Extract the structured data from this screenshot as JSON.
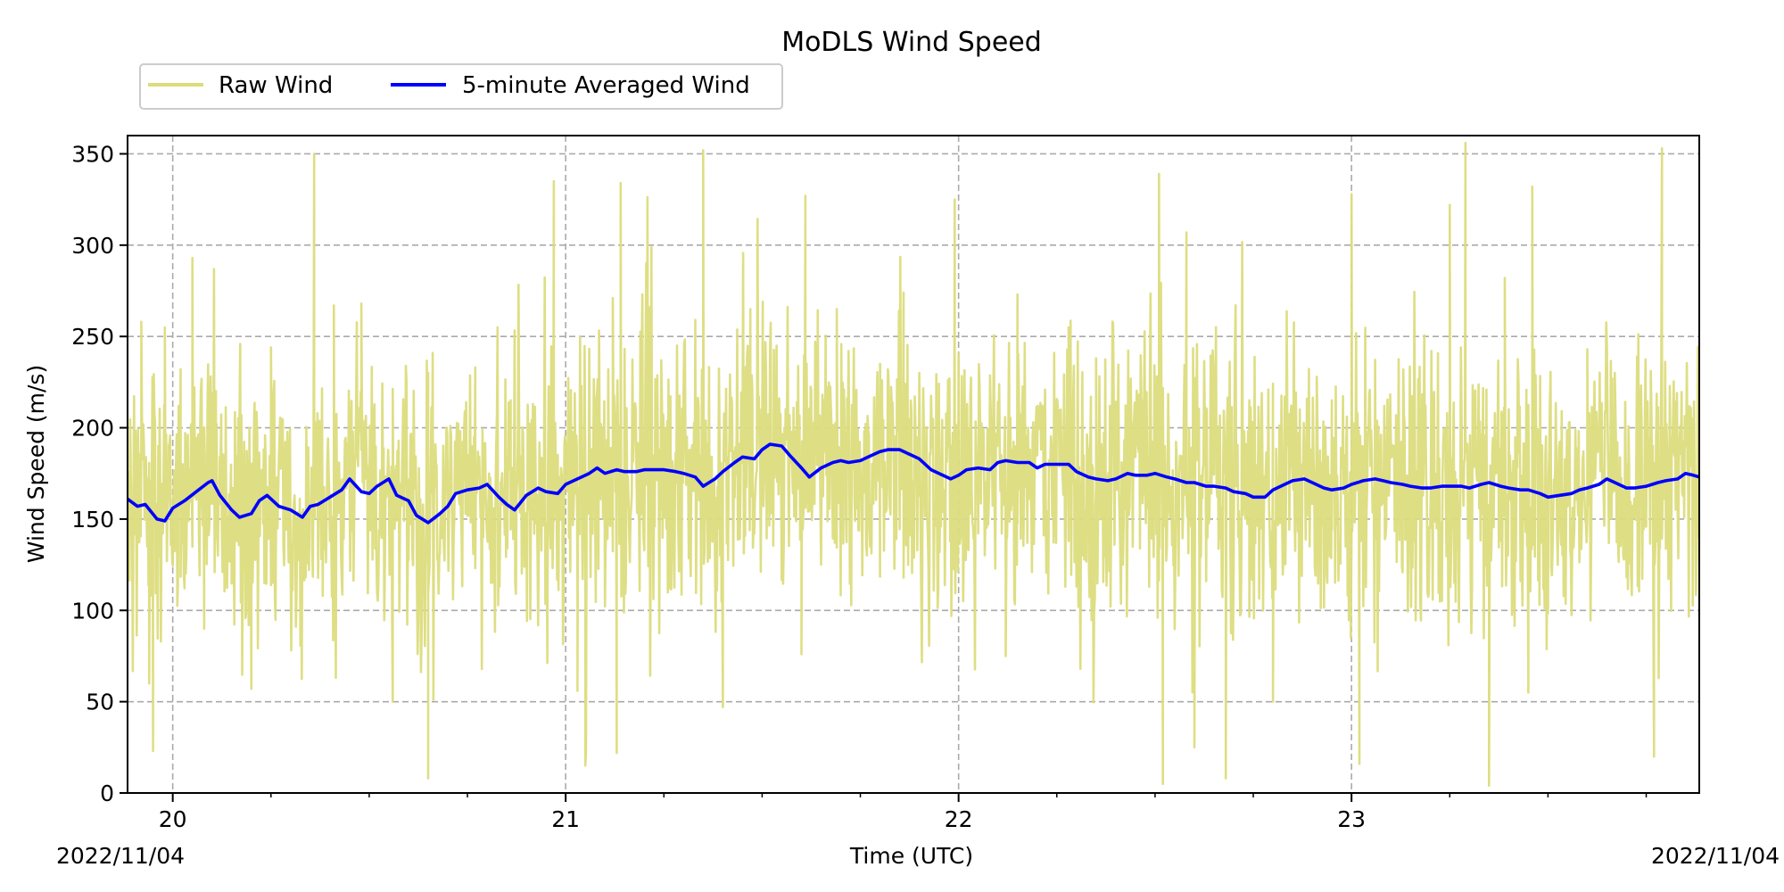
{
  "chart_data": {
    "type": "line",
    "title": "MoDLS Wind Speed",
    "xlabel": "Time (UTC)",
    "ylabel": "Wind Speed (m/s)",
    "x_unit": "hour of day (UTC), 2022/11/04",
    "xlim": [
      19.885,
      23.885
    ],
    "ylim": [
      0,
      360
    ],
    "x_major_ticks": [
      20,
      21,
      22,
      23
    ],
    "x_major_tick_labels": [
      "20",
      "21",
      "22",
      "23"
    ],
    "x_minor_tick_step": 0.25,
    "y_ticks": [
      0,
      50,
      100,
      150,
      200,
      250,
      300,
      350
    ],
    "y_tick_labels": [
      "0",
      "50",
      "100",
      "150",
      "200",
      "250",
      "300",
      "350"
    ],
    "date_labels": {
      "left": "2022/11/04",
      "right": "2022/11/04"
    },
    "grid": true,
    "legend": {
      "placement": "top-left, outside above plot",
      "columns": 2
    },
    "series": [
      {
        "name": "Raw Wind",
        "color": "#dcdc7d",
        "line_width": "thin",
        "note": "noisy minute-scale signal, mostly 100-220 m/s",
        "spikes": [
          [
            19.92,
            258
          ],
          [
            19.94,
            60
          ],
          [
            19.95,
            23
          ],
          [
            19.98,
            255
          ],
          [
            20.02,
            232
          ],
          [
            20.05,
            293
          ],
          [
            20.08,
            90
          ],
          [
            20.11,
            220
          ],
          [
            20.2,
            57
          ],
          [
            20.25,
            244
          ],
          [
            20.36,
            350
          ],
          [
            20.41,
            267
          ],
          [
            20.48,
            268
          ],
          [
            20.56,
            50
          ],
          [
            20.65,
            230
          ],
          [
            20.65,
            8
          ],
          [
            20.77,
            233
          ],
          [
            20.86,
            215
          ],
          [
            20.97,
            335
          ],
          [
            21.03,
            56
          ],
          [
            21.05,
            15
          ],
          [
            21.12,
            271
          ],
          [
            21.13,
            22
          ],
          [
            21.14,
            334
          ],
          [
            21.35,
            352
          ],
          [
            21.4,
            47
          ],
          [
            21.47,
            265
          ],
          [
            21.6,
            76
          ],
          [
            21.61,
            327
          ],
          [
            21.69,
            265
          ],
          [
            21.8,
            235
          ],
          [
            21.86,
            274
          ],
          [
            21.99,
            325
          ],
          [
            22.12,
            75
          ],
          [
            22.15,
            273
          ],
          [
            22.28,
            255
          ],
          [
            22.35,
            238
          ],
          [
            22.47,
            215
          ],
          [
            22.51,
            339
          ],
          [
            22.52,
            5
          ],
          [
            22.58,
            307
          ],
          [
            22.6,
            25
          ],
          [
            22.68,
            8
          ],
          [
            22.74,
            215
          ],
          [
            22.8,
            50
          ],
          [
            22.95,
            215
          ],
          [
            23.0,
            328
          ],
          [
            23.02,
            16
          ],
          [
            23.25,
            322
          ],
          [
            23.29,
            356
          ],
          [
            23.35,
            4
          ],
          [
            23.39,
            282
          ],
          [
            23.45,
            55
          ],
          [
            23.46,
            332
          ],
          [
            23.6,
            243
          ],
          [
            23.67,
            230
          ],
          [
            23.77,
            20
          ],
          [
            23.79,
            353
          ]
        ]
      },
      {
        "name": "5-minute Averaged Wind",
        "color": "#0000ff",
        "line_width": "thick",
        "points": [
          [
            19.885,
            161
          ],
          [
            19.91,
            157
          ],
          [
            19.93,
            158
          ],
          [
            19.96,
            150
          ],
          [
            19.98,
            149
          ],
          [
            20.0,
            156
          ],
          [
            20.03,
            160
          ],
          [
            20.06,
            165
          ],
          [
            20.09,
            170
          ],
          [
            20.1,
            171
          ],
          [
            20.12,
            163
          ],
          [
            20.15,
            155
          ],
          [
            20.17,
            151
          ],
          [
            20.2,
            153
          ],
          [
            20.22,
            160
          ],
          [
            20.24,
            163
          ],
          [
            20.27,
            157
          ],
          [
            20.3,
            155
          ],
          [
            20.33,
            151
          ],
          [
            20.35,
            157
          ],
          [
            20.37,
            158
          ],
          [
            20.4,
            162
          ],
          [
            20.43,
            166
          ],
          [
            20.45,
            172
          ],
          [
            20.48,
            165
          ],
          [
            20.5,
            164
          ],
          [
            20.52,
            168
          ],
          [
            20.55,
            172
          ],
          [
            20.57,
            163
          ],
          [
            20.6,
            160
          ],
          [
            20.62,
            152
          ],
          [
            20.65,
            148
          ],
          [
            20.68,
            153
          ],
          [
            20.7,
            157
          ],
          [
            20.72,
            164
          ],
          [
            20.75,
            166
          ],
          [
            20.78,
            167
          ],
          [
            20.8,
            169
          ],
          [
            20.83,
            162
          ],
          [
            20.85,
            158
          ],
          [
            20.87,
            155
          ],
          [
            20.9,
            163
          ],
          [
            20.93,
            167
          ],
          [
            20.95,
            165
          ],
          [
            20.98,
            164
          ],
          [
            21.0,
            169
          ],
          [
            21.03,
            172
          ],
          [
            21.06,
            175
          ],
          [
            21.08,
            178
          ],
          [
            21.1,
            175
          ],
          [
            21.13,
            177
          ],
          [
            21.15,
            176
          ],
          [
            21.18,
            176
          ],
          [
            21.2,
            177
          ],
          [
            21.23,
            177
          ],
          [
            21.25,
            177
          ],
          [
            21.28,
            176
          ],
          [
            21.3,
            175
          ],
          [
            21.33,
            173
          ],
          [
            21.35,
            168
          ],
          [
            21.38,
            172
          ],
          [
            21.4,
            176
          ],
          [
            21.43,
            181
          ],
          [
            21.45,
            184
          ],
          [
            21.48,
            183
          ],
          [
            21.5,
            188
          ],
          [
            21.52,
            191
          ],
          [
            21.55,
            190
          ],
          [
            21.57,
            185
          ],
          [
            21.6,
            178
          ],
          [
            21.62,
            173
          ],
          [
            21.65,
            178
          ],
          [
            21.68,
            181
          ],
          [
            21.7,
            182
          ],
          [
            21.72,
            181
          ],
          [
            21.75,
            182
          ],
          [
            21.78,
            185
          ],
          [
            21.8,
            187
          ],
          [
            21.82,
            188
          ],
          [
            21.85,
            188
          ],
          [
            21.88,
            185
          ],
          [
            21.9,
            183
          ],
          [
            21.93,
            177
          ],
          [
            21.95,
            175
          ],
          [
            21.98,
            172
          ],
          [
            22.0,
            174
          ],
          [
            22.02,
            177
          ],
          [
            22.05,
            178
          ],
          [
            22.08,
            177
          ],
          [
            22.1,
            181
          ],
          [
            22.12,
            182
          ],
          [
            22.15,
            181
          ],
          [
            22.18,
            181
          ],
          [
            22.2,
            178
          ],
          [
            22.22,
            180
          ],
          [
            22.25,
            180
          ],
          [
            22.28,
            180
          ],
          [
            22.3,
            176
          ],
          [
            22.33,
            173
          ],
          [
            22.35,
            172
          ],
          [
            22.38,
            171
          ],
          [
            22.4,
            172
          ],
          [
            22.43,
            175
          ],
          [
            22.45,
            174
          ],
          [
            22.48,
            174
          ],
          [
            22.5,
            175
          ],
          [
            22.53,
            173
          ],
          [
            22.55,
            172
          ],
          [
            22.58,
            170
          ],
          [
            22.6,
            170
          ],
          [
            22.63,
            168
          ],
          [
            22.65,
            168
          ],
          [
            22.68,
            167
          ],
          [
            22.7,
            165
          ],
          [
            22.73,
            164
          ],
          [
            22.75,
            162
          ],
          [
            22.78,
            162
          ],
          [
            22.8,
            166
          ],
          [
            22.83,
            169
          ],
          [
            22.85,
            171
          ],
          [
            22.88,
            172
          ],
          [
            22.9,
            170
          ],
          [
            22.93,
            167
          ],
          [
            22.95,
            166
          ],
          [
            22.98,
            167
          ],
          [
            23.0,
            169
          ],
          [
            23.03,
            171
          ],
          [
            23.06,
            172
          ],
          [
            23.08,
            171
          ],
          [
            23.1,
            170
          ],
          [
            23.13,
            169
          ],
          [
            23.15,
            168
          ],
          [
            23.18,
            167
          ],
          [
            23.2,
            167
          ],
          [
            23.23,
            168
          ],
          [
            23.26,
            168
          ],
          [
            23.28,
            168
          ],
          [
            23.3,
            167
          ],
          [
            23.33,
            169
          ],
          [
            23.35,
            170
          ],
          [
            23.38,
            168
          ],
          [
            23.4,
            167
          ],
          [
            23.43,
            166
          ],
          [
            23.45,
            166
          ],
          [
            23.48,
            164
          ],
          [
            23.5,
            162
          ],
          [
            23.53,
            163
          ],
          [
            23.56,
            164
          ],
          [
            23.58,
            166
          ],
          [
            23.6,
            167
          ],
          [
            23.63,
            169
          ],
          [
            23.65,
            172
          ],
          [
            23.68,
            169
          ],
          [
            23.7,
            167
          ],
          [
            23.72,
            167
          ],
          [
            23.75,
            168
          ],
          [
            23.78,
            170
          ],
          [
            23.8,
            171
          ],
          [
            23.83,
            172
          ],
          [
            23.85,
            175
          ],
          [
            23.87,
            174
          ],
          [
            23.885,
            173
          ]
        ]
      }
    ]
  }
}
